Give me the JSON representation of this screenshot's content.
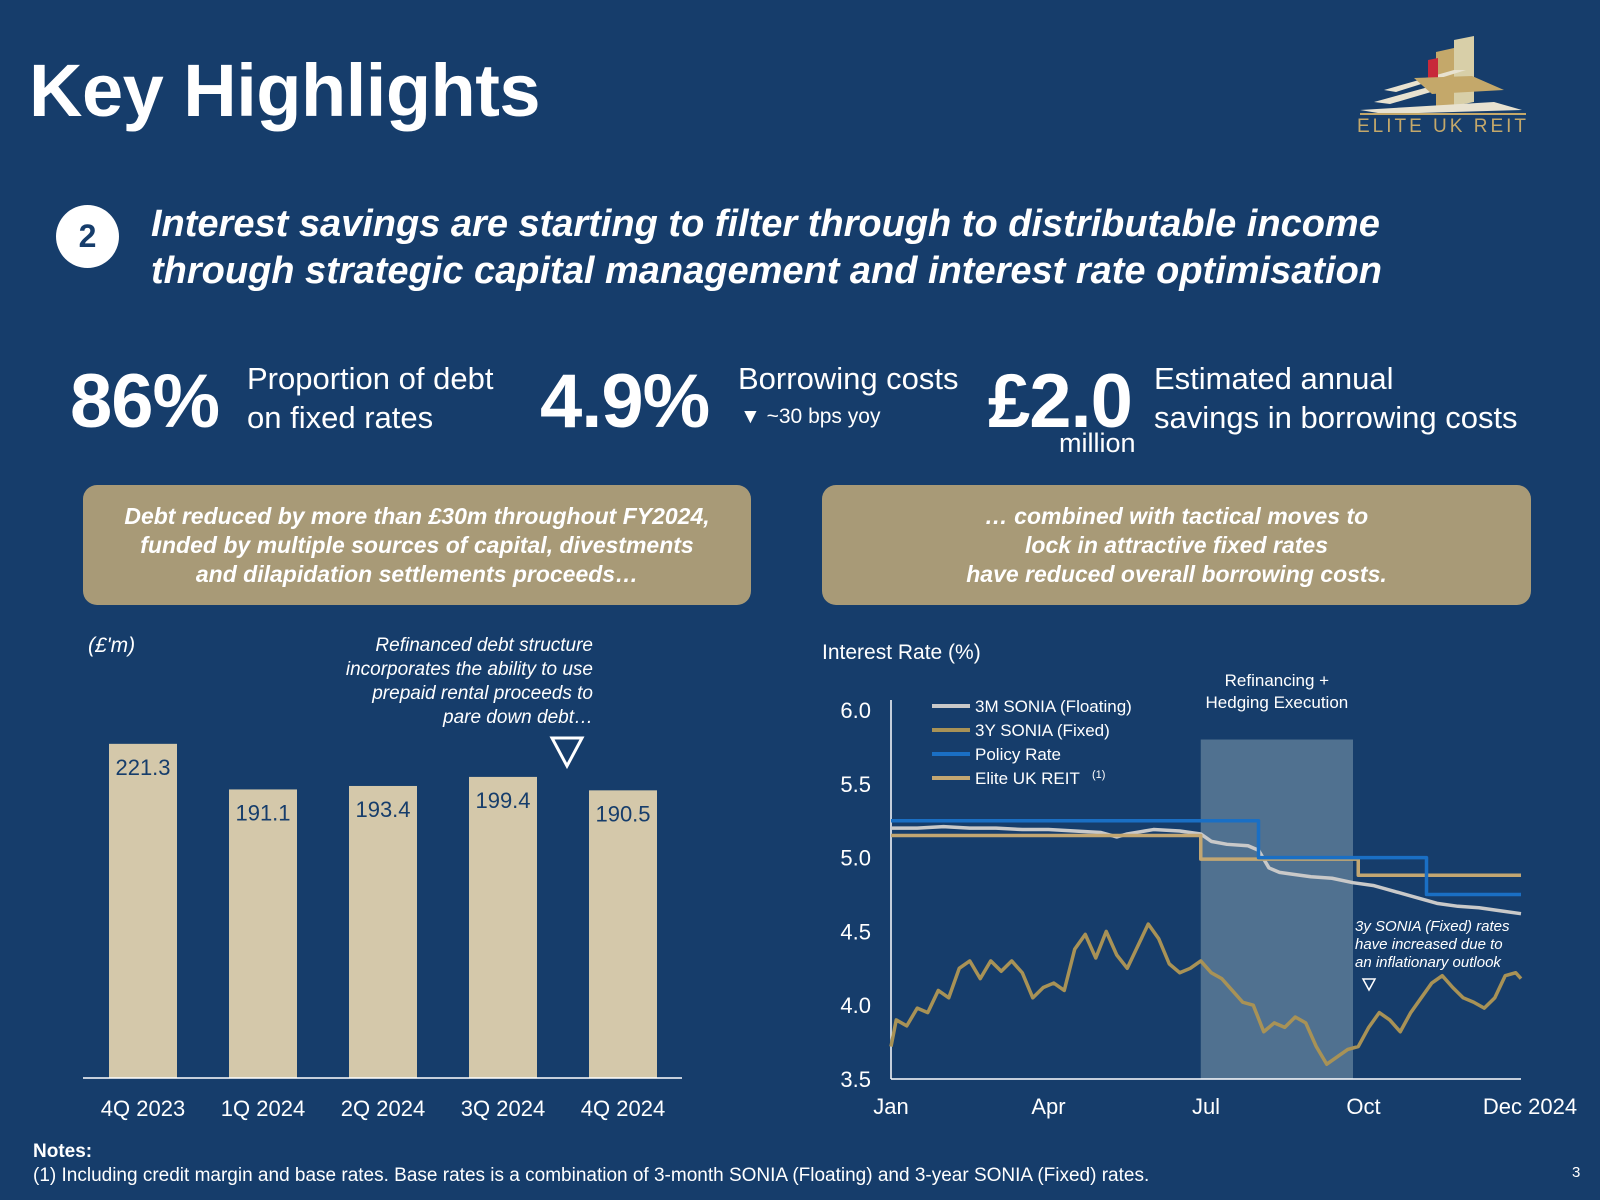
{
  "header": {
    "title": "Key Highlights",
    "logo_text": "ELITE UK REIT",
    "section_number": "2",
    "headline_line1": "Interest savings are starting to filter through to distributable income",
    "headline_line2": "through strategic capital management and interest rate optimisation"
  },
  "kpis": [
    {
      "value": "86%",
      "line1": "Proportion of debt",
      "line2": "on fixed rates"
    },
    {
      "value": "4.9%",
      "line1": "Borrowing costs",
      "line2": "▼ ~30 bps yoy"
    },
    {
      "value": "£2.0",
      "unit": "million",
      "line1": "Estimated annual",
      "line2": "savings in borrowing costs"
    }
  ],
  "banners": {
    "left": [
      "Debt reduced by more than £30m throughout FY2024,",
      "funded by multiple sources of capital, divestments",
      "and dilapidation settlements proceeds…"
    ],
    "right": [
      "… combined with tactical moves to",
      "lock in attractive fixed rates",
      "have reduced overall borrowing costs."
    ]
  },
  "colors": {
    "background": "#163d6b",
    "gold": "#a89a77",
    "bar": "#d4c8aa",
    "sonia_floating": "#c9c9c9",
    "sonia_fixed": "#a89256",
    "policy_rate": "#1a6fc4",
    "elite_reit": "#c2a672",
    "shade": "#5a7a97"
  },
  "chart_data": [
    {
      "type": "bar",
      "unit_label": "(£'m)",
      "categories": [
        "4Q 2023",
        "1Q 2024",
        "2Q 2024",
        "3Q 2024",
        "4Q 2024"
      ],
      "values": [
        221.3,
        191.1,
        193.4,
        199.4,
        190.5
      ],
      "value_labels": [
        "221.3",
        "191.1",
        "193.4",
        "199.4",
        "190.5"
      ],
      "annotation": [
        "Refinanced debt structure",
        "incorporates the ability to use",
        "prepaid rental proceeds to",
        "pare down debt…"
      ]
    },
    {
      "type": "line",
      "ylabel": "Interest Rate (%)",
      "ylim": [
        3.5,
        6.0
      ],
      "yticks": [
        "6.0",
        "5.5",
        "5.0",
        "4.5",
        "4.0",
        "3.5"
      ],
      "xlim": [
        0,
        12
      ],
      "xticks": [
        {
          "x": 0,
          "label": "Jan"
        },
        {
          "x": 3,
          "label": "Apr"
        },
        {
          "x": 6,
          "label": "Jul"
        },
        {
          "x": 9,
          "label": "Oct"
        },
        {
          "x": 12,
          "label": "Dec 2024"
        }
      ],
      "shaded_region": {
        "x": [
          5.9,
          8.8
        ],
        "label": [
          "Refinancing +",
          "Hedging Execution"
        ]
      },
      "annotation": [
        "3y SONIA (Fixed) rates",
        "have increased due to",
        "an inflationary outlook"
      ],
      "legend_position": "top-left",
      "series": [
        {
          "name": "3M SONIA (Floating)",
          "color_key": "sonia_floating",
          "points": [
            [
              0,
              5.2
            ],
            [
              0.5,
              5.2
            ],
            [
              1,
              5.21
            ],
            [
              1.5,
              5.2
            ],
            [
              2,
              5.2
            ],
            [
              2.5,
              5.19
            ],
            [
              3,
              5.19
            ],
            [
              3.5,
              5.18
            ],
            [
              4,
              5.17
            ],
            [
              4.3,
              5.14
            ],
            [
              4.5,
              5.16
            ],
            [
              5,
              5.19
            ],
            [
              5.5,
              5.18
            ],
            [
              5.9,
              5.16
            ],
            [
              6.1,
              5.11
            ],
            [
              6.4,
              5.09
            ],
            [
              6.8,
              5.08
            ],
            [
              7,
              5.05
            ],
            [
              7.2,
              4.93
            ],
            [
              7.4,
              4.9
            ],
            [
              7.6,
              4.89
            ],
            [
              8,
              4.87
            ],
            [
              8.4,
              4.86
            ],
            [
              8.8,
              4.83
            ],
            [
              9.2,
              4.81
            ],
            [
              9.6,
              4.77
            ],
            [
              10,
              4.73
            ],
            [
              10.4,
              4.69
            ],
            [
              10.8,
              4.67
            ],
            [
              11.2,
              4.66
            ],
            [
              11.6,
              4.64
            ],
            [
              12,
              4.62
            ]
          ]
        },
        {
          "name": "3Y SONIA (Fixed)",
          "color_key": "sonia_fixed",
          "points": [
            [
              0,
              3.72
            ],
            [
              0.1,
              3.9
            ],
            [
              0.3,
              3.86
            ],
            [
              0.5,
              3.98
            ],
            [
              0.7,
              3.95
            ],
            [
              0.9,
              4.1
            ],
            [
              1.1,
              4.05
            ],
            [
              1.3,
              4.25
            ],
            [
              1.5,
              4.3
            ],
            [
              1.7,
              4.18
            ],
            [
              1.9,
              4.3
            ],
            [
              2.1,
              4.23
            ],
            [
              2.3,
              4.3
            ],
            [
              2.5,
              4.22
            ],
            [
              2.7,
              4.05
            ],
            [
              2.9,
              4.12
            ],
            [
              3.1,
              4.15
            ],
            [
              3.3,
              4.1
            ],
            [
              3.5,
              4.38
            ],
            [
              3.7,
              4.48
            ],
            [
              3.9,
              4.32
            ],
            [
              4.1,
              4.5
            ],
            [
              4.3,
              4.34
            ],
            [
              4.5,
              4.25
            ],
            [
              4.7,
              4.4
            ],
            [
              4.9,
              4.55
            ],
            [
              5.1,
              4.45
            ],
            [
              5.3,
              4.28
            ],
            [
              5.5,
              4.22
            ],
            [
              5.7,
              4.25
            ],
            [
              5.9,
              4.3
            ],
            [
              6.1,
              4.22
            ],
            [
              6.3,
              4.18
            ],
            [
              6.5,
              4.1
            ],
            [
              6.7,
              4.02
            ],
            [
              6.9,
              4.0
            ],
            [
              7.1,
              3.82
            ],
            [
              7.3,
              3.88
            ],
            [
              7.5,
              3.85
            ],
            [
              7.7,
              3.92
            ],
            [
              7.9,
              3.88
            ],
            [
              8.1,
              3.72
            ],
            [
              8.3,
              3.6
            ],
            [
              8.5,
              3.65
            ],
            [
              8.7,
              3.7
            ],
            [
              8.9,
              3.72
            ],
            [
              9.1,
              3.85
            ],
            [
              9.3,
              3.95
            ],
            [
              9.5,
              3.9
            ],
            [
              9.7,
              3.82
            ],
            [
              9.9,
              3.95
            ],
            [
              10.1,
              4.05
            ],
            [
              10.3,
              4.15
            ],
            [
              10.5,
              4.2
            ],
            [
              10.7,
              4.12
            ],
            [
              10.9,
              4.05
            ],
            [
              11.1,
              4.02
            ],
            [
              11.3,
              3.98
            ],
            [
              11.5,
              4.05
            ],
            [
              11.7,
              4.2
            ],
            [
              11.9,
              4.22
            ],
            [
              12,
              4.18
            ]
          ]
        },
        {
          "name": "Policy Rate",
          "color_key": "policy_rate",
          "points": [
            [
              0,
              5.25
            ],
            [
              7.0,
              5.25
            ],
            [
              7.0,
              5.0
            ],
            [
              10.2,
              5.0
            ],
            [
              10.2,
              4.75
            ],
            [
              12,
              4.75
            ]
          ]
        },
        {
          "name": "Elite UK REIT",
          "superscript": "(1)",
          "color_key": "elite_reit",
          "points": [
            [
              0,
              5.15
            ],
            [
              5.9,
              5.15
            ],
            [
              5.9,
              4.99
            ],
            [
              8.9,
              4.99
            ],
            [
              8.9,
              4.88
            ],
            [
              12,
              4.88
            ]
          ]
        }
      ]
    }
  ],
  "notes": {
    "heading": "Notes:",
    "items": [
      "(1)  Including credit margin and base rates. Base rates is a combination of 3-month SONIA (Floating) and 3-year SONIA (Fixed) rates."
    ]
  },
  "page_number": "3"
}
